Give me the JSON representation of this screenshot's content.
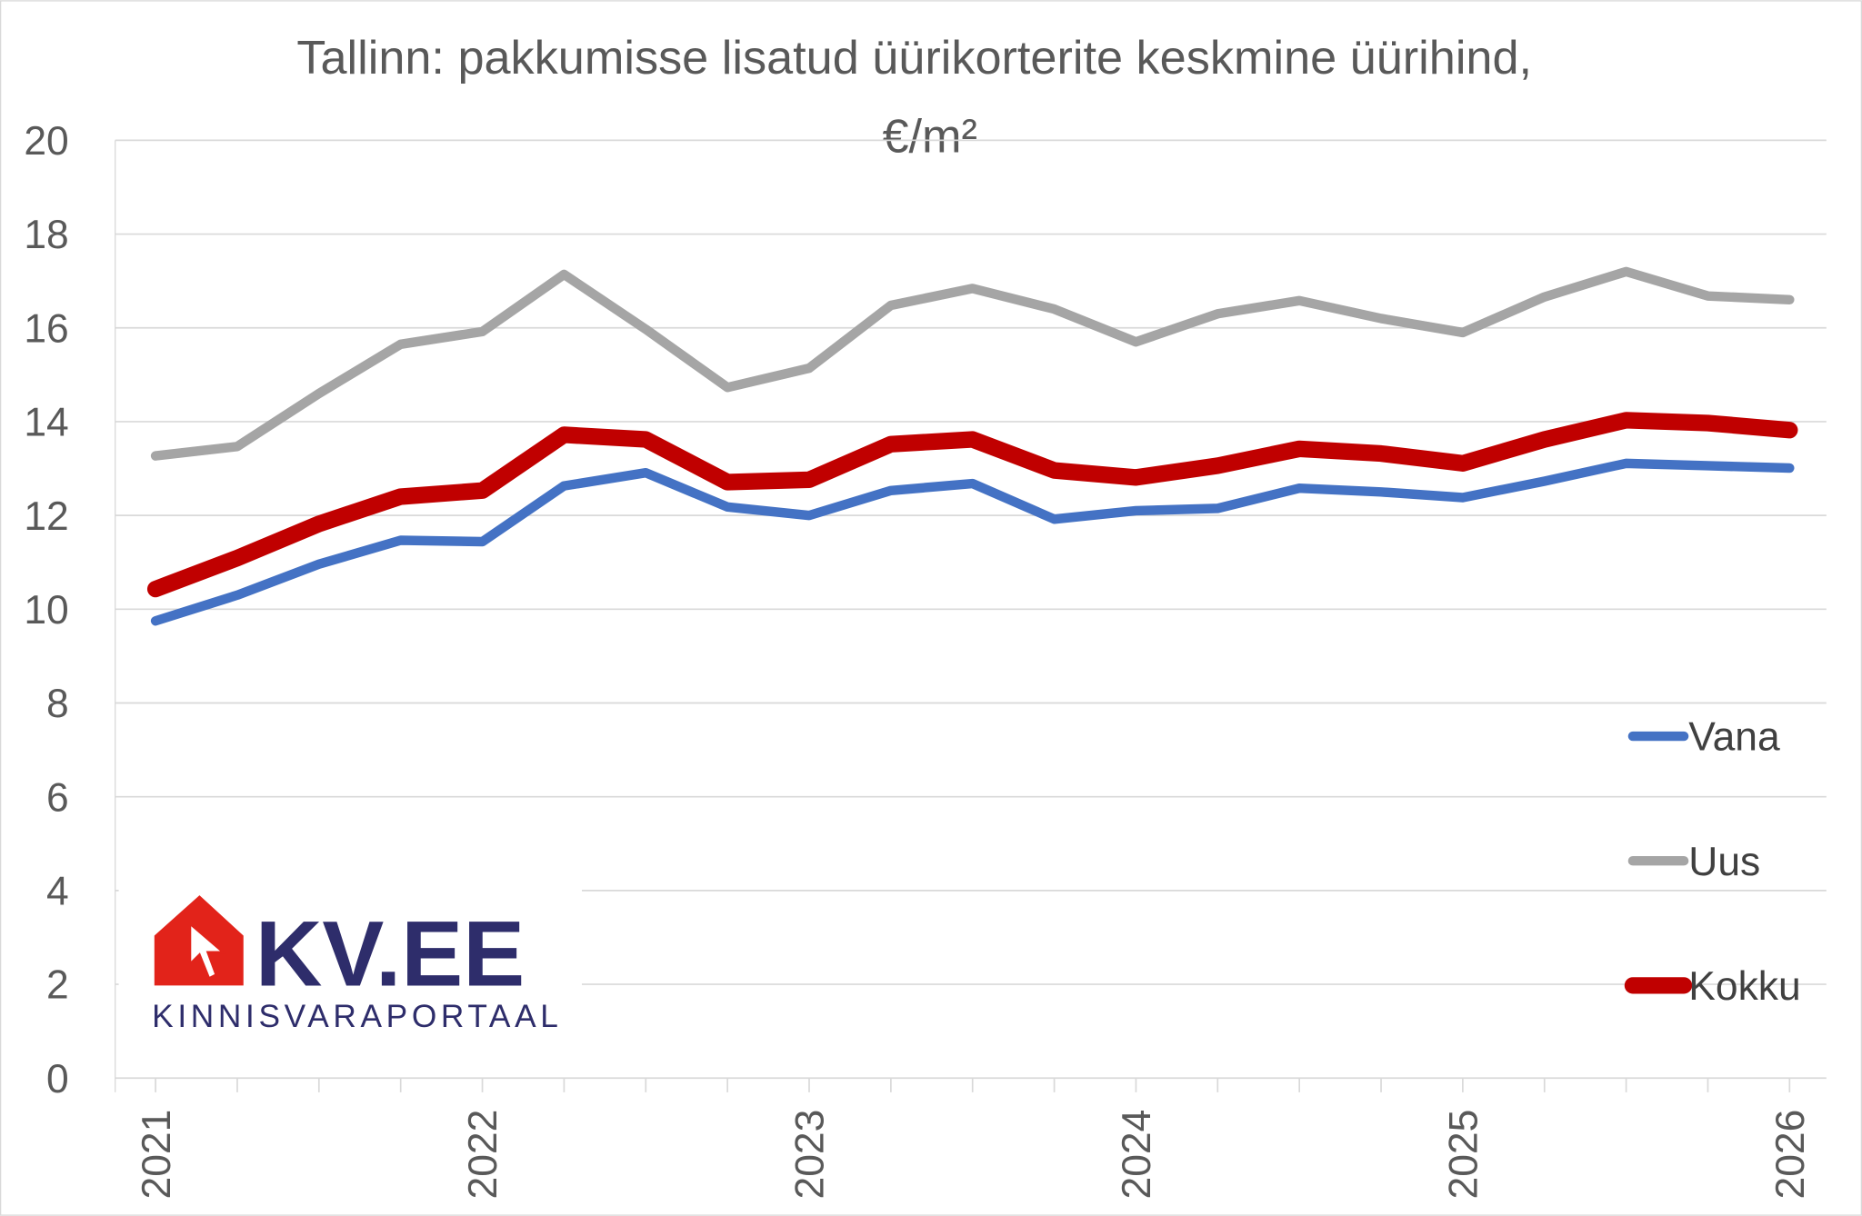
{
  "chart_data": {
    "type": "line",
    "title_line1": "Tallinn: pakkumisse lisatud üürikorterite keskmine üürihind,",
    "title_line2": "€/m²",
    "xlabel": "",
    "ylabel": "",
    "ylim": [
      0,
      20
    ],
    "yticks": [
      0,
      2,
      4,
      6,
      8,
      10,
      12,
      14,
      16,
      18,
      20
    ],
    "xlim": [
      2021,
      2026
    ],
    "xtick_labels": [
      "2021",
      "2022",
      "2023",
      "2024",
      "2025",
      "2026"
    ],
    "x": [
      2021.0,
      2021.25,
      2021.5,
      2021.75,
      2022.0,
      2022.25,
      2022.5,
      2022.75,
      2023.0,
      2023.25,
      2023.5,
      2023.75,
      2024.0,
      2024.25,
      2024.5,
      2024.75,
      2025.0,
      2025.25,
      2025.5,
      2025.75,
      2026.0
    ],
    "grid": "horizontal",
    "legend_placement": "right",
    "series": [
      {
        "name": "Vana",
        "color": "#4472C4",
        "values": [
          9.75,
          10.3,
          10.96,
          11.47,
          11.44,
          12.63,
          12.91,
          12.18,
          12.0,
          12.53,
          12.68,
          11.92,
          12.1,
          12.15,
          12.58,
          12.5,
          12.38,
          12.73,
          13.11,
          13.06,
          13.01
        ]
      },
      {
        "name": "Uus",
        "color": "#A5A5A5",
        "values": [
          13.27,
          13.47,
          14.6,
          15.65,
          15.92,
          17.14,
          15.97,
          14.73,
          15.14,
          16.48,
          16.84,
          16.4,
          15.7,
          16.3,
          16.58,
          16.2,
          15.9,
          16.66,
          17.2,
          16.68,
          16.6
        ]
      },
      {
        "name": "Kokku",
        "color": "#C00000",
        "values": [
          10.43,
          11.09,
          11.82,
          12.4,
          12.53,
          13.72,
          13.62,
          12.71,
          12.76,
          13.52,
          13.62,
          12.96,
          12.81,
          13.06,
          13.42,
          13.32,
          13.11,
          13.62,
          14.03,
          13.97,
          13.82
        ]
      }
    ]
  },
  "logo": {
    "brand": "KV.EE",
    "tagline": "KINNISVARAPORTAAL",
    "colors": {
      "red": "#E2231A",
      "navy": "#2E2D6B"
    }
  }
}
